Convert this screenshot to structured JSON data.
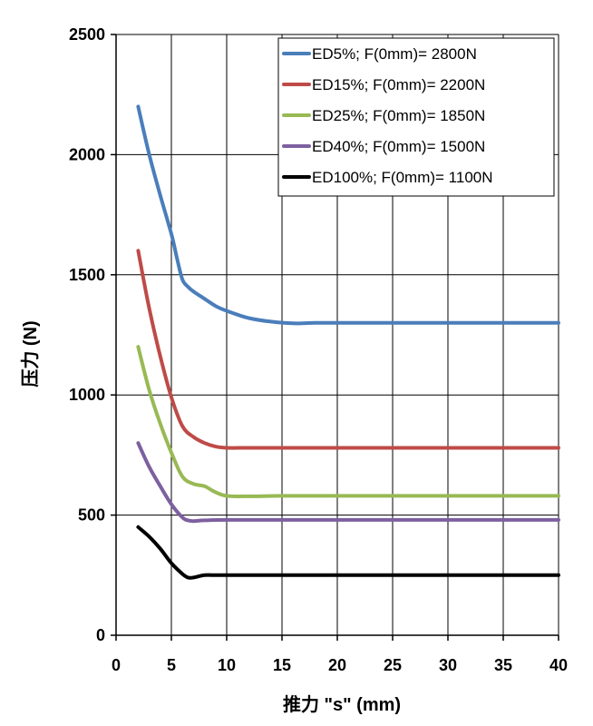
{
  "chart_data": {
    "type": "line",
    "title": "",
    "xlabel": "推力  \"s\" (mm)",
    "ylabel": "压力 (N)",
    "xlim": [
      0,
      40
    ],
    "ylim": [
      0,
      2500
    ],
    "x_ticks": [
      0,
      5,
      10,
      15,
      20,
      25,
      30,
      35,
      40
    ],
    "y_ticks": [
      0,
      500,
      1000,
      1500,
      2000,
      2500
    ],
    "x_tick_labels": [
      "0",
      "5",
      "10",
      "15",
      "20",
      "25",
      "30",
      "35",
      "40"
    ],
    "y_tick_labels": [
      "0",
      "500",
      "1000",
      "1500",
      "2000",
      "2500"
    ],
    "grid": true,
    "legend_position": "top-right",
    "series": [
      {
        "name": "ED5%; F(0mm)= 2800N",
        "color": "#4a7ebb",
        "x": [
          2,
          3,
          4,
          5,
          5.5,
          6,
          6.5,
          7,
          8,
          9,
          10,
          12,
          14,
          16,
          18,
          20,
          25,
          30,
          35,
          40
        ],
        "y": [
          2200,
          2000,
          1830,
          1670,
          1570,
          1480,
          1450,
          1430,
          1400,
          1370,
          1350,
          1320,
          1305,
          1298,
          1300,
          1300,
          1300,
          1300,
          1300,
          1300
        ]
      },
      {
        "name": "ED15%; F(0mm)= 2200N",
        "color": "#be4b48",
        "x": [
          2,
          3,
          4,
          5,
          6,
          7,
          8,
          9,
          10,
          12,
          15,
          20,
          25,
          30,
          35,
          40
        ],
        "y": [
          1600,
          1360,
          1160,
          990,
          870,
          825,
          800,
          785,
          780,
          780,
          780,
          780,
          780,
          780,
          780,
          780
        ]
      },
      {
        "name": "ED25%; F(0mm)= 1850N",
        "color": "#98b954",
        "x": [
          2,
          3,
          4,
          5,
          6,
          7,
          8,
          9,
          10,
          12,
          15,
          20,
          25,
          30,
          35,
          40
        ],
        "y": [
          1200,
          1020,
          880,
          760,
          660,
          630,
          620,
          595,
          580,
          578,
          580,
          580,
          580,
          580,
          580,
          580
        ]
      },
      {
        "name": "ED40%; F(0mm)= 1500N",
        "color": "#7d60a0",
        "x": [
          2,
          3,
          4,
          5,
          6,
          6.5,
          7,
          8,
          10,
          15,
          20,
          25,
          30,
          35,
          40
        ],
        "y": [
          800,
          700,
          620,
          545,
          490,
          478,
          475,
          478,
          480,
          480,
          480,
          480,
          480,
          480,
          480
        ]
      },
      {
        "name": "ED100%; F(0mm)= 1100N",
        "color": "#000000",
        "x": [
          2,
          3,
          4,
          5,
          6,
          6.5,
          7,
          8,
          9,
          10,
          15,
          20,
          25,
          30,
          35,
          40
        ],
        "y": [
          450,
          410,
          360,
          300,
          255,
          240,
          240,
          250,
          250,
          250,
          250,
          250,
          250,
          250,
          250,
          250
        ]
      }
    ]
  }
}
